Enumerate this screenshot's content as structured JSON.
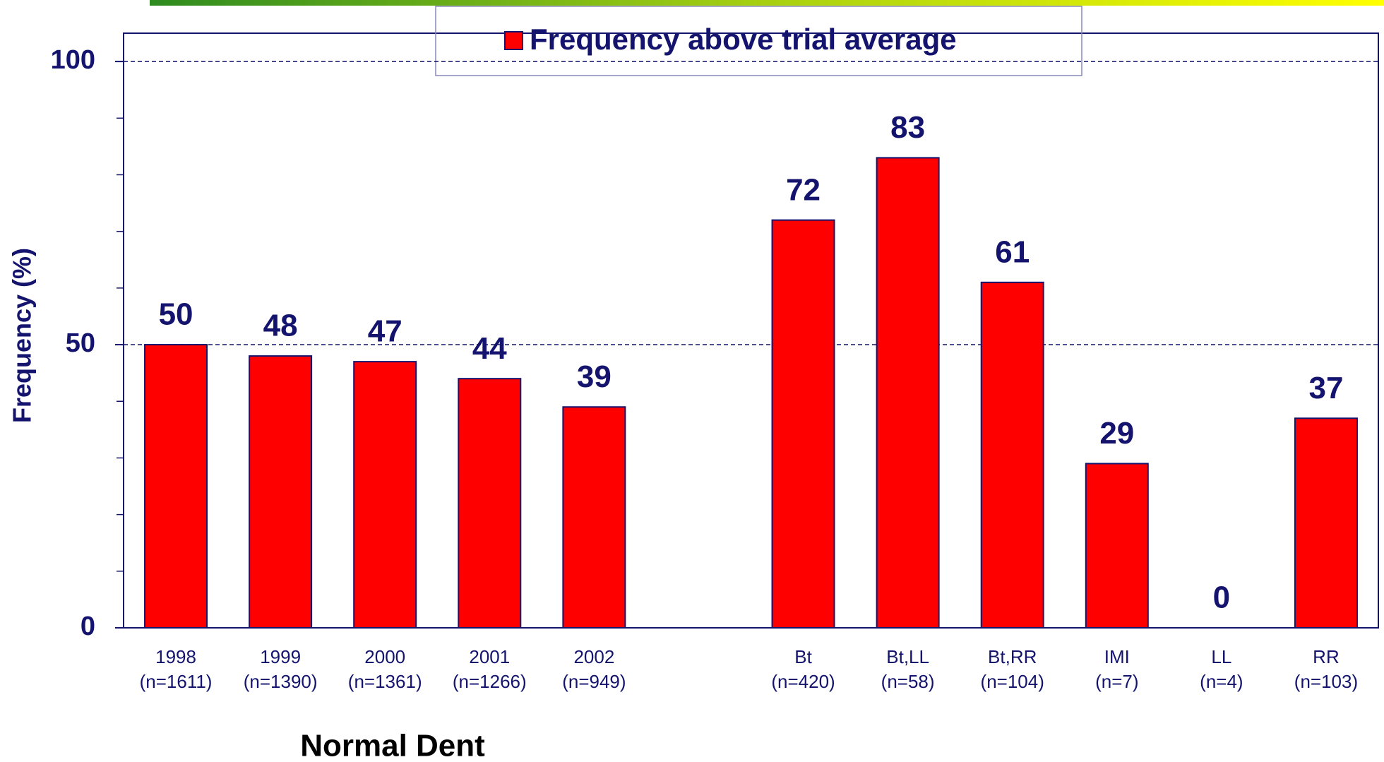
{
  "chart_data": {
    "type": "bar",
    "legend_label": "Frequency above trial average",
    "y_axis_label": "Frequency (%)",
    "x_group_label": "Normal Dent",
    "categories": [
      "1998",
      "1999",
      "2000",
      "2001",
      "2002",
      null,
      "Bt",
      "Bt,LL",
      "Bt,RR",
      "IMI",
      "LL",
      "RR"
    ],
    "sample_sizes": [
      "(n=1611)",
      "(n=1390)",
      "(n=1361)",
      "(n=1266)",
      "(n=949)",
      null,
      "(n=420)",
      "(n=58)",
      "(n=104)",
      "(n=7)",
      "(n=4)",
      "(n=103)"
    ],
    "values": [
      50,
      48,
      47,
      44,
      39,
      null,
      72,
      83,
      61,
      29,
      0,
      37
    ],
    "color": "#ff0000",
    "ylim": [
      0,
      105
    ],
    "yticks": [
      0,
      50,
      100
    ],
    "minor_yticks": [
      10,
      20,
      30,
      40,
      60,
      70,
      80,
      90
    ],
    "grid": true
  }
}
